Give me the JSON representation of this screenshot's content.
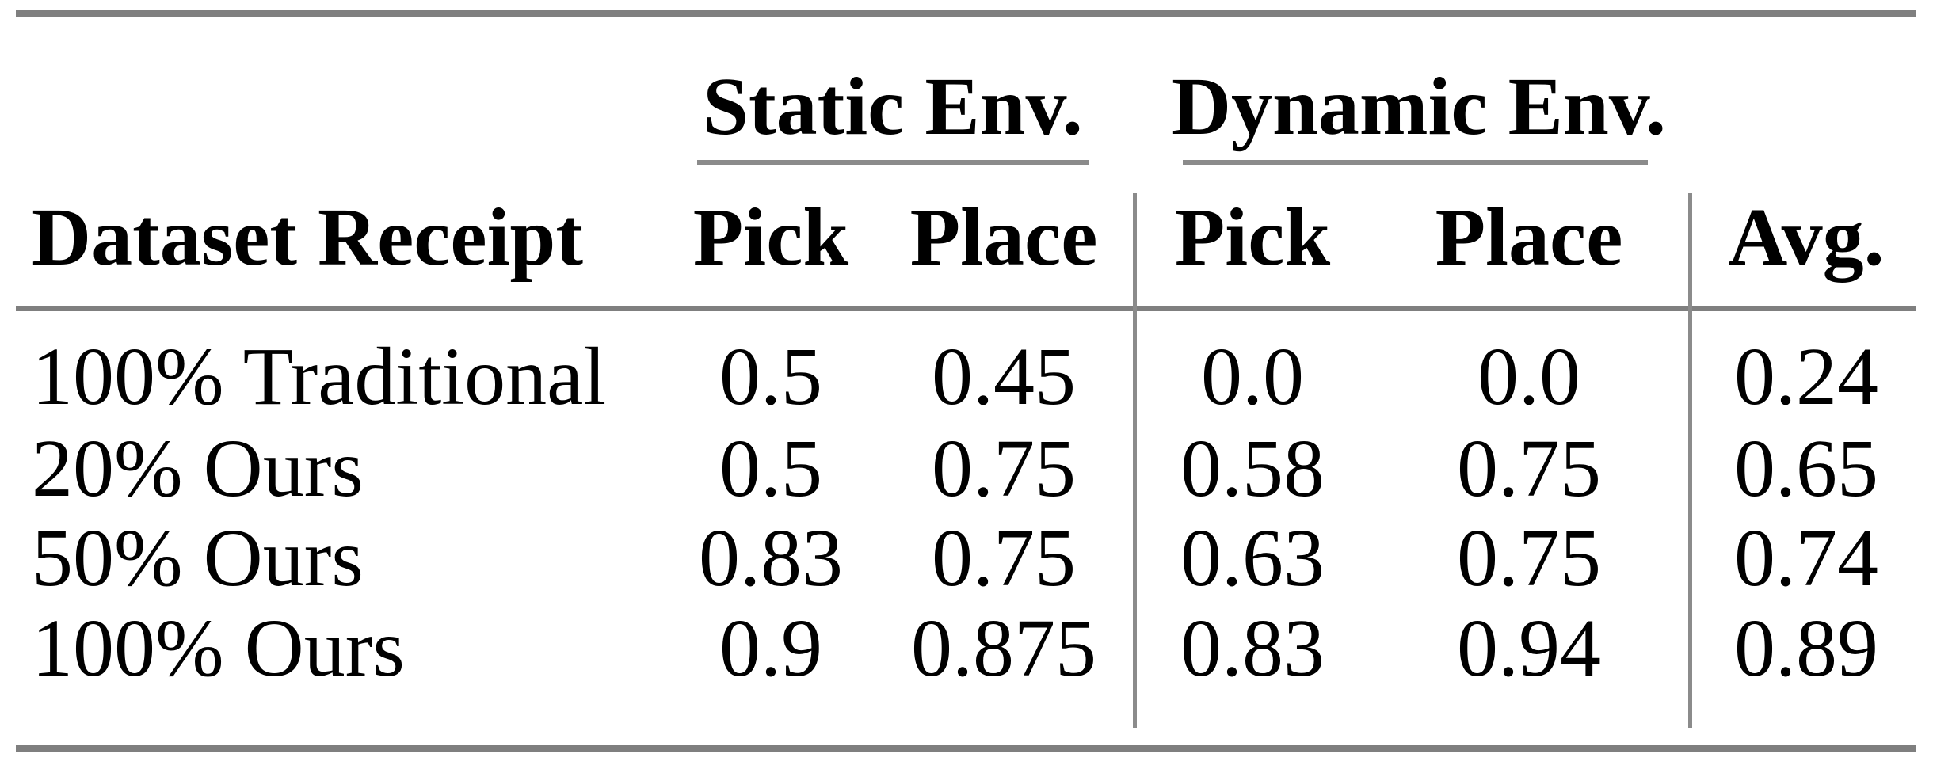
{
  "table": {
    "group_headers": [
      "Static Env.",
      "Dynamic Env."
    ],
    "column_headers": [
      "Dataset Receipt",
      "Pick",
      "Place",
      "Pick",
      "Place",
      "Avg."
    ],
    "rows": [
      [
        "100% Traditional",
        "0.5",
        "0.45",
        "0.0",
        "0.0",
        "0.24"
      ],
      [
        "20% Ours",
        "0.5",
        "0.75",
        "0.58",
        "0.75",
        "0.65"
      ],
      [
        "50% Ours",
        "0.83",
        "0.75",
        "0.63",
        "0.75",
        "0.74"
      ],
      [
        "100% Ours",
        "0.9",
        "0.875",
        "0.83",
        "0.94",
        "0.89"
      ]
    ],
    "colors": {
      "thick_rule": "#7f7f7f",
      "thin_rule": "#8b8b8b",
      "text": "#000000",
      "background": "#ffffff"
    }
  }
}
